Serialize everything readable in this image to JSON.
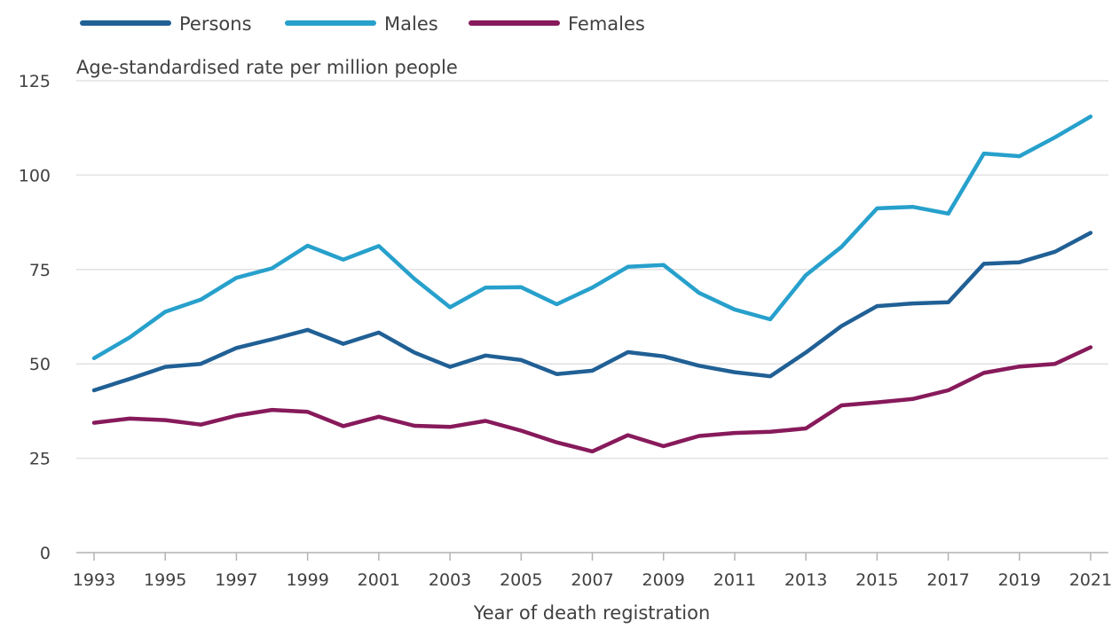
{
  "chart_data": {
    "type": "line",
    "ylabel": "Age-standardised rate per million people",
    "xlabel": "Year of death registration",
    "ylim": [
      0,
      125
    ],
    "yticks": [
      0,
      25,
      50,
      75,
      100,
      125
    ],
    "xlim": [
      1993,
      2021
    ],
    "xticks": [
      1993,
      1995,
      1997,
      1999,
      2001,
      2003,
      2005,
      2007,
      2009,
      2011,
      2013,
      2015,
      2017,
      2019,
      2021
    ],
    "grid": "horizontal",
    "legend_position": "top-left",
    "x": [
      1993,
      1994,
      1995,
      1996,
      1997,
      1998,
      1999,
      2000,
      2001,
      2002,
      2003,
      2004,
      2005,
      2006,
      2007,
      2008,
      2009,
      2010,
      2011,
      2012,
      2013,
      2014,
      2015,
      2016,
      2017,
      2018,
      2019,
      2020,
      2021
    ],
    "series": [
      {
        "name": "Persons",
        "color": "#206095",
        "values": [
          43.0,
          46.0,
          49.2,
          50.0,
          54.2,
          56.5,
          59.0,
          55.3,
          58.3,
          53.0,
          49.2,
          52.2,
          51.0,
          47.3,
          48.2,
          53.1,
          52.0,
          49.5,
          47.8,
          46.7,
          53.0,
          60.0,
          65.3,
          66.0,
          66.3,
          76.5,
          76.9,
          79.7,
          84.7
        ]
      },
      {
        "name": "Males",
        "color": "#27a0cc",
        "values": [
          51.5,
          57.0,
          63.8,
          67.0,
          72.8,
          75.3,
          81.3,
          77.6,
          81.2,
          72.5,
          65.0,
          70.2,
          70.3,
          65.8,
          70.2,
          75.7,
          76.2,
          68.8,
          64.4,
          61.8,
          73.5,
          81.0,
          91.2,
          91.6,
          89.8,
          105.7,
          105.0,
          110.0,
          115.5
        ]
      },
      {
        "name": "Females",
        "color": "#871a5b",
        "values": [
          34.4,
          35.5,
          35.1,
          33.9,
          36.3,
          37.8,
          37.3,
          33.5,
          36.0,
          33.6,
          33.3,
          34.9,
          32.3,
          29.2,
          26.8,
          31.1,
          28.2,
          30.9,
          31.7,
          32.0,
          32.9,
          39.0,
          39.8,
          40.7,
          43.0,
          47.6,
          49.3,
          50.0,
          54.4
        ]
      }
    ]
  }
}
